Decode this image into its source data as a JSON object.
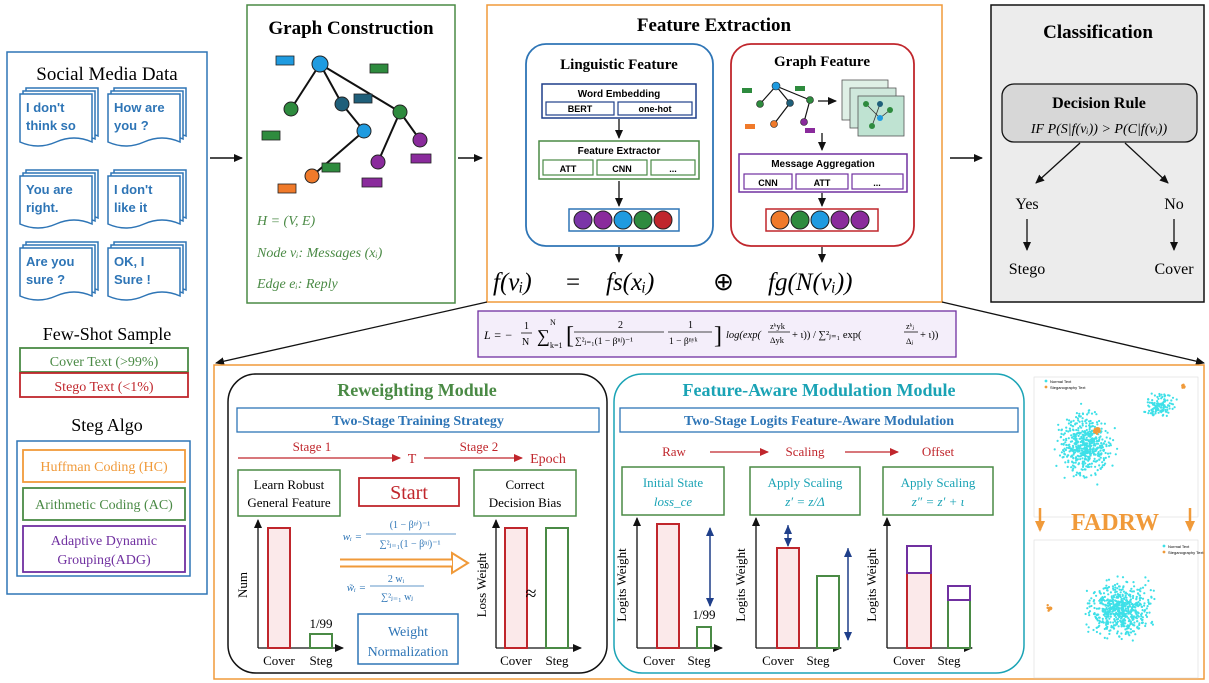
{
  "social": {
    "title": "Social Media Data",
    "messages": [
      [
        "I don't",
        "think so"
      ],
      [
        "How are",
        "you ?"
      ],
      [
        "You are",
        "right."
      ],
      [
        "I don't",
        "like it"
      ],
      [
        "Are you",
        "sure ?"
      ],
      [
        "OK, I",
        "Sure !"
      ]
    ],
    "few_shot_title": "Few-Shot Sample",
    "cover_text": "Cover Text (>99%)",
    "stego_text": "Stego Text (<1%)",
    "steg_title": "Steg Algo",
    "algos": {
      "hc": "Huffman Coding (HC)",
      "ac": "Arithmetic Coding (AC)",
      "adg_1": "Adaptive Dynamic",
      "adg_2": "Grouping(ADG)"
    }
  },
  "graph": {
    "title": "Graph Construction",
    "eq1": "H = (V, E)",
    "eq2": "Node vᵢ: Messages (xᵢ)",
    "eq3": "Edge eᵢ: Reply"
  },
  "feature": {
    "title": "Feature Extraction",
    "linguistic_title": "Linguistic Feature",
    "word_embedding": "Word Embedding",
    "bert": "BERT",
    "onehot": "one-hot",
    "feature_extractor": "Feature Extractor",
    "att": "ATT",
    "cnn": "CNN",
    "dots": "...",
    "graph_title": "Graph Feature",
    "message_aggregation": "Message Aggregation",
    "eq_left": "f(vᵢ)",
    "eq_equals": "=",
    "eq_fs": "fs(xᵢ)",
    "eq_oplus": "⊕",
    "eq_fg": "fg(N(vᵢ))"
  },
  "classification": {
    "title": "Classification",
    "rule_title": "Decision Rule",
    "rule": "IF P(S|f(vᵢ)) > P(C|f(vᵢ))",
    "yes": "Yes",
    "no": "No",
    "stego": "Stego",
    "cover": "Cover"
  },
  "loss": {
    "lhs": "L = −",
    "frac_1": "1",
    "frac_n": "N",
    "sum_top": "N",
    "sum_bot": "k=1",
    "two": "2",
    "denom_1": "∑²ⱼ₌₁(1 − βⁿʲ)⁻¹",
    "one": "1",
    "denom_2": "1 − βⁿʸᵏ",
    "log": "log(exp(",
    "zyk": "zᵏyk",
    "dyk": "Δyk",
    "mid": "+ ι)) / ∑²ⱼ₌₁ exp(",
    "zj": "zᵏⱼ",
    "dj": "Δⱼ",
    "tail": "+ ι))"
  },
  "reweight": {
    "title": "Reweighting Module",
    "strategy": "Two-Stage Training Strategy",
    "stage1": "Stage 1",
    "stage2": "Stage 2",
    "t": "T",
    "epoch": "Epoch",
    "learn_1": "Learn Robust",
    "learn_2": "General Feature",
    "start": "Start",
    "correct_1": "Correct",
    "correct_2": "Decision Bias",
    "w_eq_lhs": "wᵢ =",
    "w_eq_num": "(1 − βⁿⁱ)⁻¹",
    "w_eq_den": "∑²ⱼ₌₁(1 − βⁿʲ)⁻¹",
    "wt_eq_lhs": "w̃ᵢ =",
    "wt_eq_num": "2 wᵢ",
    "wt_eq_den": "∑²ⱼ₌₁ wⱼ",
    "num_label": "Num",
    "ratio": "1/99",
    "cover": "Cover",
    "steg": "Steg",
    "norm_1": "Weight",
    "norm_2": "Normalization",
    "loss_weight": "Loss Weight",
    "approx": "≈"
  },
  "fam": {
    "title": "Feature-Aware Modulation Module",
    "strategy": "Two-Stage Logits Feature-Aware Modulation",
    "raw": "Raw",
    "scaling": "Scaling",
    "offset": "Offset",
    "init_1": "Initial State",
    "init_2": "loss_ce",
    "scale_1": "Apply  Scaling",
    "scale_2": "z′ = z/Δ",
    "off_1": "Apply  Scaling",
    "off_2": "z″ = z′ + ι",
    "logits_weight": "Logits Weight",
    "ratio": "1/99",
    "cover": "Cover",
    "steg": "Steg"
  },
  "fadrw": {
    "label": "FADRW",
    "legend_normal": "Normal Text",
    "legend_stego": "Steganography Text"
  },
  "colors": {
    "blue": "#2e75b6",
    "green": "#4a8a45",
    "orange": "#f09a3a",
    "red": "#c0262c",
    "purple": "#7030a0",
    "cyan": "#1aa3b5",
    "gray": "#ececec",
    "scatter": "#3ee0e8"
  },
  "chart_data": [
    {
      "type": "bar",
      "categories": [
        "Cover",
        "Steg"
      ],
      "values": [
        99,
        1
      ],
      "xlabel": "",
      "ylabel": "Num"
    },
    {
      "type": "bar",
      "categories": [
        "Cover",
        "Steg"
      ],
      "values": [
        1,
        1
      ],
      "xlabel": "",
      "ylabel": "Loss Weight"
    }
  ]
}
